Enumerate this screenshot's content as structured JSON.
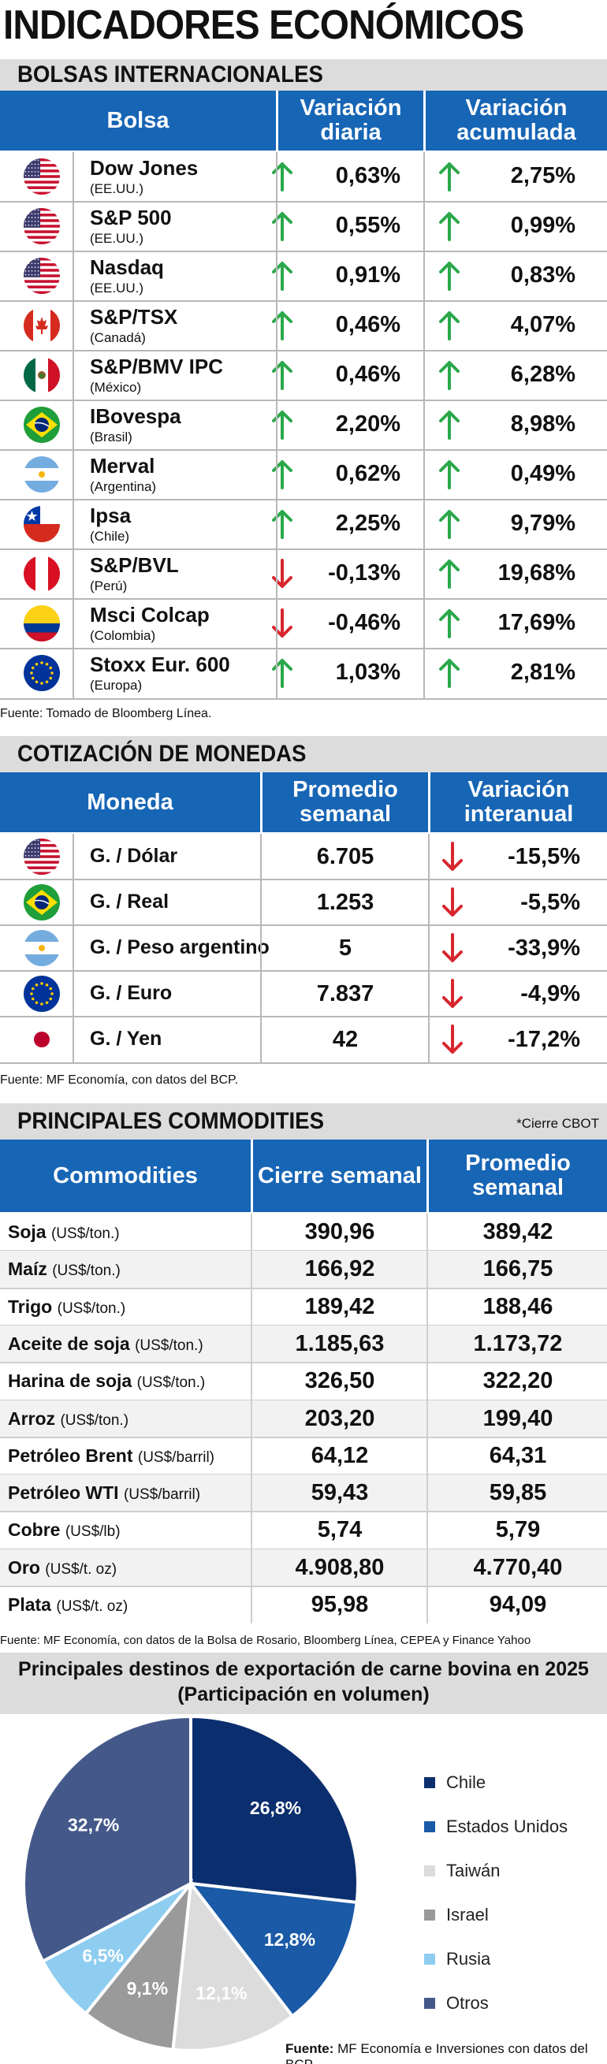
{
  "title": "INDICADORES ECONÓMICOS",
  "bolsas": {
    "section_title": "BOLSAS INTERNACIONALES",
    "headers": {
      "bolsa": "Bolsa",
      "diaria": "Variación diaria",
      "acumulada": "Variación acumulada"
    },
    "rows": [
      {
        "name": "Dow Jones",
        "country": "(EE.UU.)",
        "flag": "us-flag",
        "daily": "0,63%",
        "daily_dir": "up",
        "accum": "2,75%",
        "accum_dir": "up"
      },
      {
        "name": "S&P 500",
        "country": "(EE.UU.)",
        "flag": "us-flag",
        "daily": "0,55%",
        "daily_dir": "up",
        "accum": "0,99%",
        "accum_dir": "up"
      },
      {
        "name": "Nasdaq",
        "country": "(EE.UU.)",
        "flag": "us-flag",
        "daily": "0,91%",
        "daily_dir": "up",
        "accum": "0,83%",
        "accum_dir": "up"
      },
      {
        "name": "S&P/TSX",
        "country": "(Canadá)",
        "flag": "canada-flag",
        "daily": "0,46%",
        "daily_dir": "up",
        "accum": "4,07%",
        "accum_dir": "up"
      },
      {
        "name": "S&P/BMV IPC",
        "country": "(México)",
        "flag": "mexico-flag",
        "daily": "0,46%",
        "daily_dir": "up",
        "accum": "6,28%",
        "accum_dir": "up"
      },
      {
        "name": "IBovespa",
        "country": "(Brasil)",
        "flag": "brazil-flag",
        "daily": "2,20%",
        "daily_dir": "up",
        "accum": "8,98%",
        "accum_dir": "up"
      },
      {
        "name": "Merval",
        "country": "(Argentina)",
        "flag": "argentina-flag",
        "daily": "0,62%",
        "daily_dir": "up",
        "accum": "0,49%",
        "accum_dir": "up"
      },
      {
        "name": "Ipsa",
        "country": "(Chile)",
        "flag": "chile-flag",
        "daily": "2,25%",
        "daily_dir": "up",
        "accum": "9,79%",
        "accum_dir": "up"
      },
      {
        "name": "S&P/BVL",
        "country": "(Perú)",
        "flag": "peru-flag",
        "daily": "-0,13%",
        "daily_dir": "down",
        "accum": "19,68%",
        "accum_dir": "up"
      },
      {
        "name": "Msci Colcap",
        "country": "(Colombia)",
        "flag": "colombia-flag",
        "daily": "-0,46%",
        "daily_dir": "down",
        "accum": "17,69%",
        "accum_dir": "up"
      },
      {
        "name": "Stoxx Eur. 600",
        "country": "(Europa)",
        "flag": "eu-flag",
        "daily": "1,03%",
        "daily_dir": "up",
        "accum": "2,81%",
        "accum_dir": "up"
      }
    ],
    "source": "Fuente: Tomado de Bloomberg Línea."
  },
  "monedas": {
    "section_title": "COTIZACIÓN DE MONEDAS",
    "headers": {
      "moneda": "Moneda",
      "promedio": "Promedio semanal",
      "variacion": "Variación interanual"
    },
    "rows": [
      {
        "name": "G. / Dólar",
        "flag": "us-flag",
        "avg": "6.705",
        "var": "-15,5%",
        "var_dir": "down"
      },
      {
        "name": "G. / Real",
        "flag": "brazil-flag",
        "avg": "1.253",
        "var": "-5,5%",
        "var_dir": "down"
      },
      {
        "name": "G. / Peso argentino",
        "flag": "argentina-flag",
        "avg": "5",
        "var": "-33,9%",
        "var_dir": "down"
      },
      {
        "name": "G. / Euro",
        "flag": "eu-flag",
        "avg": "7.837",
        "var": "-4,9%",
        "var_dir": "down"
      },
      {
        "name": "G. / Yen",
        "flag": "japan-flag",
        "avg": "42",
        "var": "-17,2%",
        "var_dir": "down"
      }
    ],
    "source": "Fuente: MF Economía, con datos del BCP."
  },
  "commodities": {
    "section_title": "PRINCIPALES COMMODITIES",
    "note": "*Cierre CBOT",
    "headers": {
      "name": "Commodities",
      "cierre": "Cierre semanal",
      "promedio": "Promedio semanal"
    },
    "rows": [
      {
        "name": "Soja",
        "unit": "(US$/ton.)",
        "close": "390,96",
        "avg": "389,42"
      },
      {
        "name": "Maíz",
        "unit": "(US$/ton.)",
        "close": "166,92",
        "avg": "166,75"
      },
      {
        "name": "Trigo",
        "unit": "(US$/ton.)",
        "close": "189,42",
        "avg": "188,46"
      },
      {
        "name": "Aceite de soja",
        "unit": "(US$/ton.)",
        "close": "1.185,63",
        "avg": "1.173,72"
      },
      {
        "name": "Harina de soja",
        "unit": "(US$/ton.)",
        "close": "326,50",
        "avg": "322,20"
      },
      {
        "name": "Arroz",
        "unit": "(US$/ton.)",
        "close": "203,20",
        "avg": "199,40"
      },
      {
        "name": "Petróleo Brent",
        "unit": "(US$/barril)",
        "close": "64,12",
        "avg": "64,31"
      },
      {
        "name": "Petróleo WTI",
        "unit": "(US$/barril)",
        "close": "59,43",
        "avg": "59,85"
      },
      {
        "name": "Cobre",
        "unit": "(US$/lb)",
        "close": "5,74",
        "avg": "5,79"
      },
      {
        "name": "Oro",
        "unit": "(US$/t. oz)",
        "close": "4.908,80",
        "avg": "4.770,40"
      },
      {
        "name": "Plata",
        "unit": "(US$/t. oz)",
        "close": "95,98",
        "avg": "94,09"
      }
    ],
    "source": "Fuente: MF Economía, con datos de la Bolsa de Rosario, Bloomberg Línea, CEPEA y Finance Yahoo"
  },
  "chart_data": {
    "type": "pie",
    "title": "Principales destinos de exportación de carne bovina en 2025",
    "subtitle": "(Participación en volumen)",
    "categories": [
      "Chile",
      "Estados Unidos",
      "Taiwán",
      "Israel",
      "Rusia",
      "Otros"
    ],
    "values": [
      26.8,
      12.8,
      12.1,
      9.1,
      6.5,
      32.7
    ],
    "labels": [
      "26,8%",
      "12,8%",
      "12,1%",
      "9,1%",
      "6,5%",
      "32,7%"
    ],
    "colors": [
      "#0b2e6e",
      "#1a5aa6",
      "#dcdcdc",
      "#9a9a9a",
      "#8fcdf0",
      "#44598a"
    ],
    "legend": "right",
    "source_label": "Fuente:",
    "source_text": "MF Economía e Inversiones con datos del BCP."
  }
}
